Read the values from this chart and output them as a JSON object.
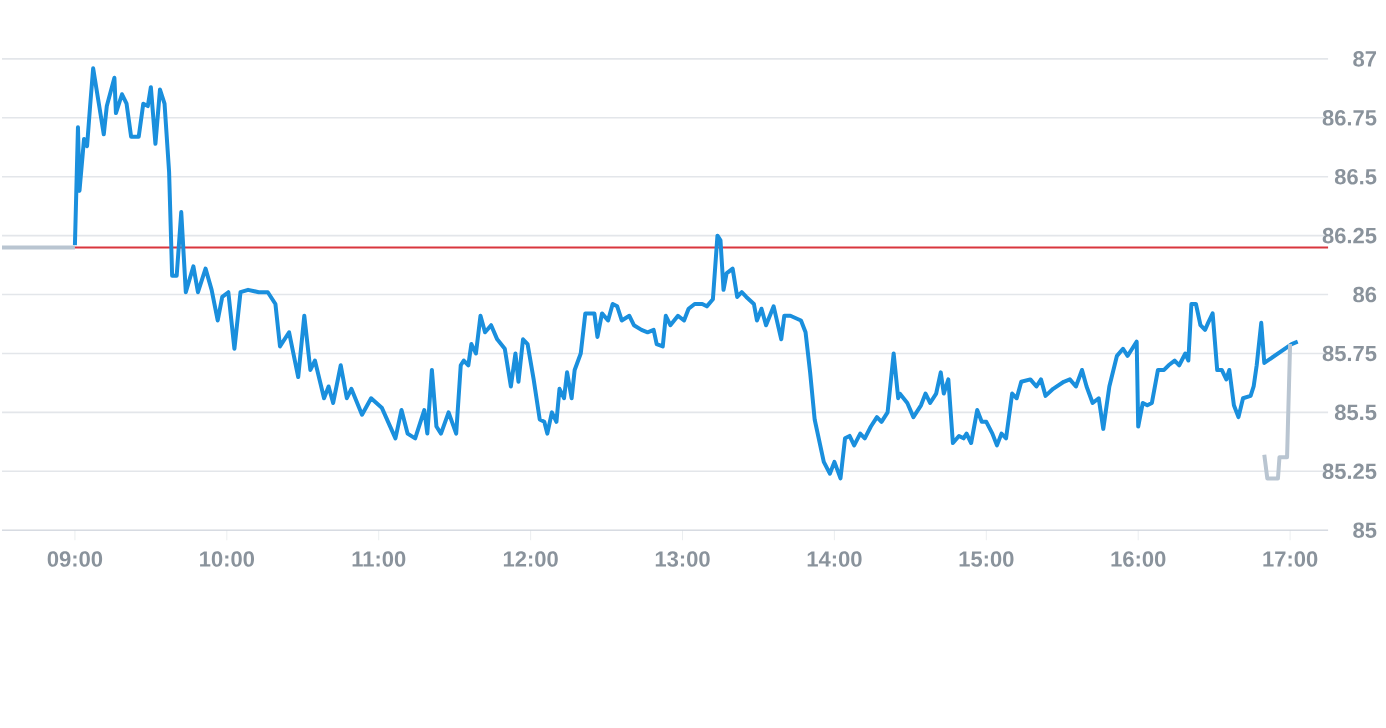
{
  "chart_data": {
    "type": "line",
    "xlim": [
      8.52,
      17.25
    ],
    "ylim": [
      85,
      87
    ],
    "xticks": [
      {
        "value": 9,
        "label": "09:00"
      },
      {
        "value": 10,
        "label": "10:00"
      },
      {
        "value": 11,
        "label": "11:00"
      },
      {
        "value": 12,
        "label": "12:00"
      },
      {
        "value": 13,
        "label": "13:00"
      },
      {
        "value": 14,
        "label": "14:00"
      },
      {
        "value": 15,
        "label": "15:00"
      },
      {
        "value": 16,
        "label": "16:00"
      },
      {
        "value": 17,
        "label": "17:00"
      }
    ],
    "yticks": [
      85,
      85.25,
      85.5,
      85.75,
      86,
      86.25,
      86.5,
      86.75,
      87
    ],
    "grid": "y",
    "marker": "none",
    "line_style": "solid",
    "ref_lines": [
      {
        "axis": "y",
        "value": 86.2,
        "color": "#d9363e"
      }
    ],
    "series": [
      {
        "color": "#b9c5d1",
        "x": [
          8.52,
          9.0
        ],
        "values": [
          86.2,
          86.2
        ]
      },
      {
        "color": "#1a8fdd",
        "x": [
          9.0,
          9.02,
          9.03,
          9.06,
          9.08,
          9.1,
          9.12,
          9.16,
          9.19,
          9.21,
          9.26,
          9.27,
          9.31,
          9.34,
          9.37,
          9.42,
          9.45,
          9.48,
          9.5,
          9.53,
          9.56,
          9.59,
          9.62,
          9.64,
          9.67,
          9.7,
          9.73,
          9.78,
          9.81,
          9.86,
          9.9,
          9.94,
          9.97,
          10.01,
          10.05,
          10.09,
          10.14,
          10.21,
          10.27,
          10.32,
          10.35,
          10.41,
          10.47,
          10.51,
          10.55,
          10.58,
          10.64,
          10.67,
          10.7,
          10.75,
          10.79,
          10.82,
          10.89,
          10.95,
          11.02,
          11.11,
          11.15,
          11.19,
          11.24,
          11.3,
          11.32,
          11.35,
          11.38,
          11.41,
          11.46,
          11.51,
          11.54,
          11.56,
          11.59,
          11.61,
          11.64,
          11.67,
          11.7,
          11.74,
          11.78,
          11.83,
          11.87,
          11.9,
          11.92,
          11.95,
          11.98,
          12.02,
          12.06,
          12.09,
          12.11,
          12.14,
          12.17,
          12.19,
          12.22,
          12.24,
          12.27,
          12.29,
          12.33,
          12.36,
          12.42,
          12.44,
          12.47,
          12.51,
          12.54,
          12.57,
          12.6,
          12.65,
          12.68,
          12.73,
          12.77,
          12.81,
          12.83,
          12.87,
          12.89,
          12.92,
          12.97,
          13.01,
          13.04,
          13.08,
          13.13,
          13.16,
          13.2,
          13.23,
          13.25,
          13.27,
          13.29,
          13.33,
          13.36,
          13.39,
          13.42,
          13.47,
          13.49,
          13.52,
          13.55,
          13.6,
          13.65,
          13.67,
          13.71,
          13.78,
          13.81,
          13.84,
          13.87,
          13.93,
          13.97,
          14.0,
          14.04,
          14.07,
          14.1,
          14.13,
          14.17,
          14.2,
          14.24,
          14.28,
          14.31,
          14.35,
          14.39,
          14.42,
          14.43,
          14.48,
          14.52,
          14.57,
          14.6,
          14.63,
          14.67,
          14.7,
          14.72,
          14.75,
          14.78,
          14.82,
          14.85,
          14.87,
          14.9,
          14.94,
          14.97,
          15.0,
          15.04,
          15.07,
          15.1,
          15.13,
          15.17,
          15.2,
          15.23,
          15.29,
          15.33,
          15.36,
          15.39,
          15.44,
          15.51,
          15.55,
          15.59,
          15.63,
          15.66,
          15.7,
          15.74,
          15.77,
          15.81,
          15.86,
          15.9,
          15.93,
          15.96,
          15.99,
          16.0,
          16.03,
          16.06,
          16.09,
          16.13,
          16.17,
          16.2,
          16.24,
          16.27,
          16.31,
          16.33,
          16.35,
          16.38,
          16.41,
          16.44,
          16.46,
          16.49,
          16.52,
          16.55,
          16.58,
          16.6,
          16.63,
          16.66,
          16.69,
          16.74,
          16.76,
          16.78,
          16.81,
          16.83,
          17.01,
          17.05
        ],
        "values": [
          86.21,
          86.71,
          86.44,
          86.66,
          86.63,
          86.8,
          86.96,
          86.8,
          86.68,
          86.8,
          86.92,
          86.77,
          86.85,
          86.81,
          86.67,
          86.67,
          86.81,
          86.8,
          86.88,
          86.64,
          86.87,
          86.81,
          86.52,
          86.08,
          86.08,
          86.35,
          86.01,
          86.12,
          86.01,
          86.11,
          86.02,
          85.89,
          85.99,
          86.01,
          85.77,
          86.01,
          86.02,
          86.01,
          86.01,
          85.96,
          85.78,
          85.84,
          85.65,
          85.91,
          85.68,
          85.72,
          85.56,
          85.61,
          85.54,
          85.7,
          85.56,
          85.6,
          85.49,
          85.56,
          85.52,
          85.39,
          85.51,
          85.41,
          85.39,
          85.51,
          85.41,
          85.68,
          85.44,
          85.41,
          85.5,
          85.41,
          85.7,
          85.72,
          85.7,
          85.79,
          85.75,
          85.91,
          85.84,
          85.87,
          85.81,
          85.77,
          85.61,
          85.75,
          85.63,
          85.81,
          85.79,
          85.64,
          85.47,
          85.46,
          85.41,
          85.5,
          85.46,
          85.6,
          85.56,
          85.67,
          85.56,
          85.68,
          85.75,
          85.92,
          85.92,
          85.82,
          85.92,
          85.89,
          85.96,
          85.95,
          85.89,
          85.91,
          85.87,
          85.85,
          85.84,
          85.85,
          85.79,
          85.78,
          85.91,
          85.87,
          85.91,
          85.89,
          85.94,
          85.96,
          85.96,
          85.95,
          85.98,
          86.25,
          86.23,
          86.02,
          86.09,
          86.11,
          85.99,
          86.01,
          85.99,
          85.96,
          85.89,
          85.94,
          85.87,
          85.95,
          85.81,
          85.91,
          85.91,
          85.89,
          85.84,
          85.67,
          85.47,
          85.29,
          85.24,
          85.29,
          85.22,
          85.39,
          85.4,
          85.36,
          85.41,
          85.39,
          85.44,
          85.48,
          85.46,
          85.5,
          85.75,
          85.56,
          85.58,
          85.54,
          85.48,
          85.53,
          85.58,
          85.54,
          85.58,
          85.67,
          85.58,
          85.64,
          85.37,
          85.4,
          85.39,
          85.41,
          85.37,
          85.51,
          85.46,
          85.46,
          85.41,
          85.36,
          85.41,
          85.39,
          85.58,
          85.56,
          85.63,
          85.64,
          85.61,
          85.64,
          85.57,
          85.6,
          85.63,
          85.64,
          85.61,
          85.68,
          85.61,
          85.54,
          85.56,
          85.43,
          85.61,
          85.74,
          85.77,
          85.74,
          85.77,
          85.8,
          85.44,
          85.54,
          85.53,
          85.54,
          85.68,
          85.68,
          85.7,
          85.72,
          85.7,
          85.75,
          85.72,
          85.96,
          85.96,
          85.87,
          85.85,
          85.88,
          85.92,
          85.68,
          85.68,
          85.64,
          85.68,
          85.53,
          85.48,
          85.56,
          85.57,
          85.61,
          85.7,
          85.88,
          85.71,
          85.79,
          85.8
        ]
      },
      {
        "color": "#b9c5d1",
        "x": [
          16.83,
          16.85,
          16.92,
          16.93,
          16.98,
          17.0
        ],
        "values": [
          85.32,
          85.22,
          85.22,
          85.31,
          85.31,
          85.79
        ]
      }
    ]
  }
}
